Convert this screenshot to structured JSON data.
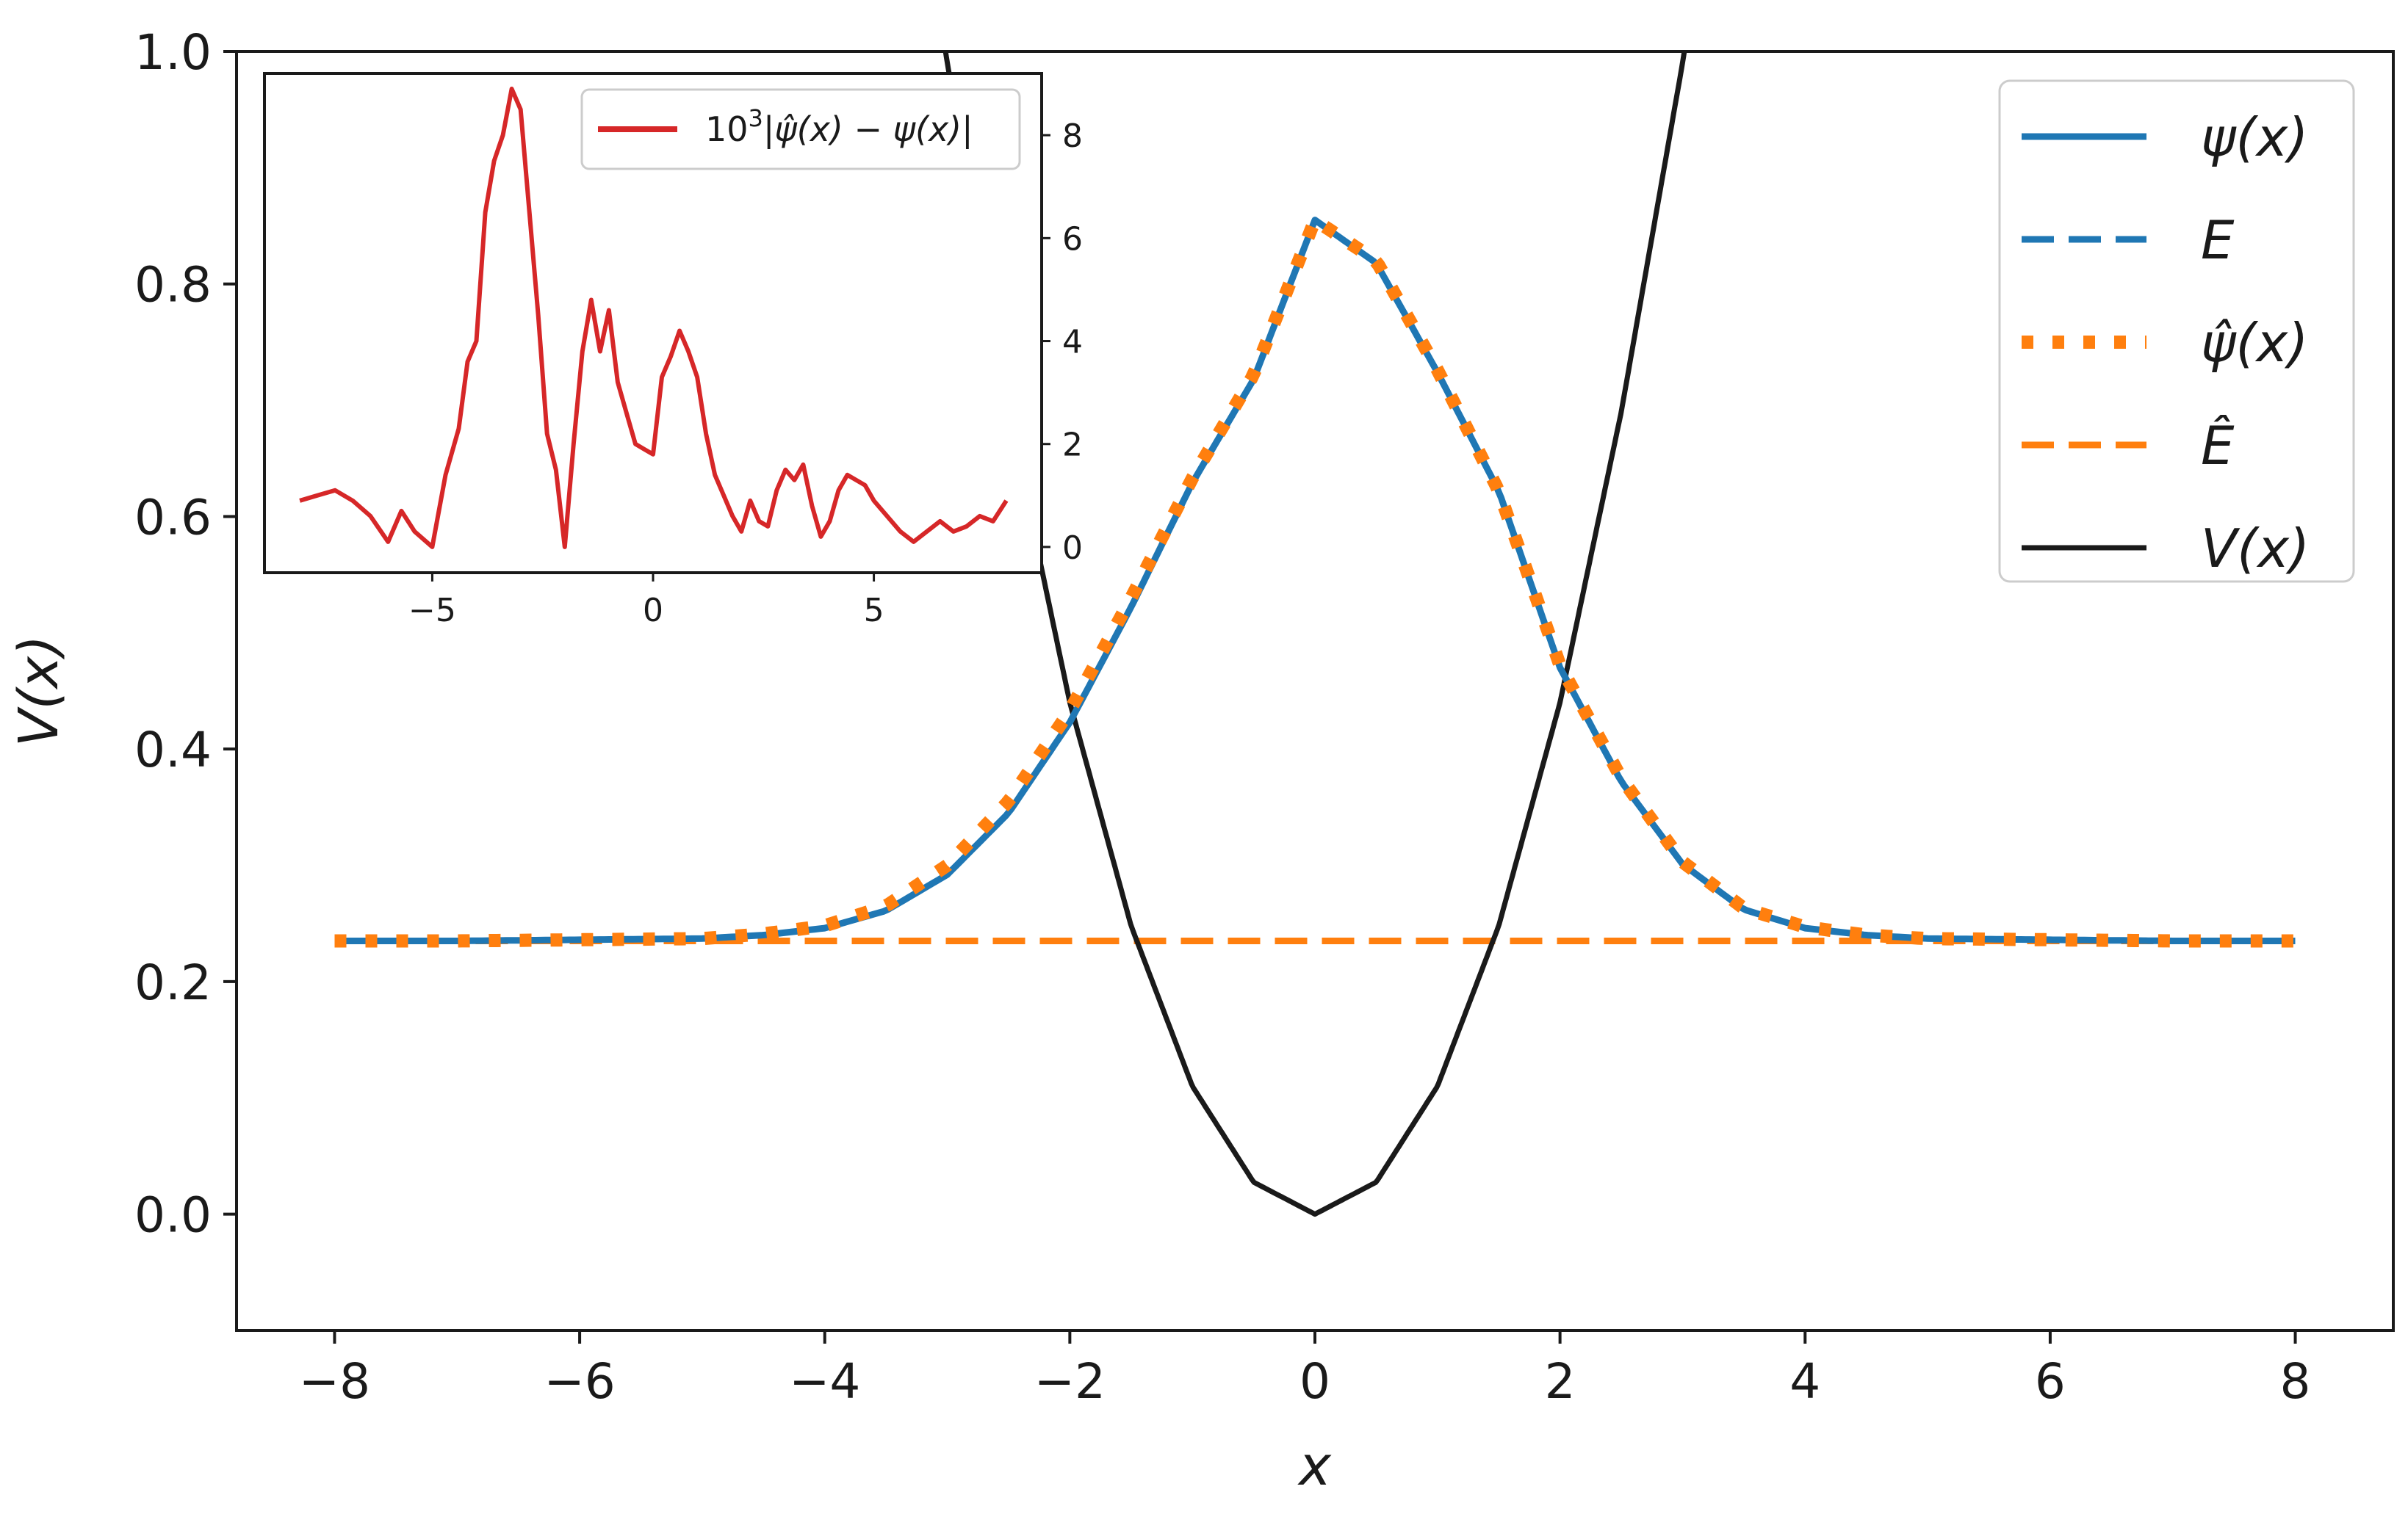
{
  "chart_data": [
    {
      "id": "main",
      "type": "line",
      "xlabel": "x",
      "ylabel": "V(x)",
      "xlim": [
        -8.8,
        8.8
      ],
      "ylim": [
        -0.1,
        1.0
      ],
      "xticks": [
        -8,
        -6,
        -4,
        -2,
        0,
        2,
        4,
        6,
        8
      ],
      "xtick_labels": [
        "−8",
        "−6",
        "−4",
        "−2",
        "0",
        "2",
        "4",
        "6",
        "8"
      ],
      "yticks": [
        0.0,
        0.2,
        0.4,
        0.6,
        0.8,
        1.0
      ],
      "ytick_labels": [
        "0.0",
        "0.2",
        "0.4",
        "0.6",
        "0.8",
        "1.0"
      ],
      "grid": false,
      "legend_position": "top-right",
      "x": [
        -8.0,
        -7.0,
        -6.0,
        -5.0,
        -4.5,
        -4.0,
        -3.5,
        -3.0,
        -2.5,
        -2.0,
        -1.5,
        -1.0,
        -0.5,
        0.0,
        0.5,
        1.0,
        1.5,
        2.0,
        2.5,
        3.0,
        3.5,
        4.0,
        4.5,
        5.0,
        6.0,
        7.0,
        8.0
      ],
      "series": [
        {
          "name": "ψ(x)",
          "style": "solid",
          "color": "#1f77b4",
          "values": [
            0.235,
            0.235,
            0.236,
            0.237,
            0.24,
            0.246,
            0.261,
            0.292,
            0.345,
            0.423,
            0.522,
            0.629,
            0.718,
            0.855,
            0.818,
            0.724,
            0.622,
            0.47,
            0.372,
            0.301,
            0.262,
            0.246,
            0.24,
            0.237,
            0.236,
            0.235,
            0.235
          ]
        },
        {
          "name": "E",
          "style": "dashed",
          "color": "#1f77b4",
          "y": 0.235
        },
        {
          "name": "ψ̂(x)",
          "style": "dotted",
          "color": "#ff7f0e",
          "values": [
            0.235,
            0.235,
            0.236,
            0.237,
            0.241,
            0.248,
            0.265,
            0.3,
            0.355,
            0.433,
            0.53,
            0.633,
            0.722,
            0.855,
            0.82,
            0.726,
            0.622,
            0.472,
            0.375,
            0.303,
            0.263,
            0.247,
            0.24,
            0.237,
            0.236,
            0.235,
            0.235
          ]
        },
        {
          "name": "Ê",
          "style": "dashed",
          "color": "#ff7f0e",
          "y": 0.235
        },
        {
          "name": "V(x)",
          "style": "solid",
          "color": "#1a1a1a",
          "x": [
            -3.2,
            -3.0,
            -2.5,
            -2.0,
            -1.5,
            -1.0,
            -0.5,
            0.0,
            0.5,
            1.0,
            1.5,
            2.0,
            2.5,
            3.0,
            3.2
          ],
          "values": [
            1.13,
            0.99,
            0.69,
            0.44,
            0.248,
            0.11,
            0.0275,
            0.0,
            0.0275,
            0.11,
            0.248,
            0.44,
            0.69,
            0.99,
            1.13
          ]
        }
      ]
    },
    {
      "id": "inset",
      "type": "line",
      "xlim": [
        -8.8,
        8.8
      ],
      "ylim": [
        -0.5,
        9.2
      ],
      "xticks": [
        -5,
        0,
        5
      ],
      "xtick_labels": [
        "−5",
        "0",
        "5"
      ],
      "yticks": [
        0,
        2,
        4,
        6,
        8
      ],
      "ytick_labels": [
        "0",
        "2",
        "4",
        "6",
        "8"
      ],
      "ytick_side": "right",
      "legend_position": "top-right",
      "series": [
        {
          "name": "10³|ψ̂(x) − ψ(x)|",
          "name_parts": {
            "base": "10",
            "exp": "3",
            "rest": "|ψ̂(x) − ψ(x)|"
          },
          "color": "#d62728",
          "x": [
            -8.0,
            -7.6,
            -7.2,
            -6.8,
            -6.4,
            -6.0,
            -5.7,
            -5.4,
            -5.0,
            -4.7,
            -4.4,
            -4.2,
            -4.0,
            -3.8,
            -3.6,
            -3.4,
            -3.2,
            -3.0,
            -2.8,
            -2.6,
            -2.4,
            -2.2,
            -2.0,
            -1.8,
            -1.6,
            -1.4,
            -1.2,
            -1.0,
            -0.8,
            -0.6,
            -0.4,
            -0.2,
            0.0,
            0.2,
            0.4,
            0.6,
            0.8,
            1.0,
            1.2,
            1.4,
            1.6,
            1.8,
            2.0,
            2.2,
            2.4,
            2.6,
            2.8,
            3.0,
            3.2,
            3.4,
            3.6,
            3.8,
            4.0,
            4.2,
            4.4,
            4.6,
            4.8,
            5.0,
            5.3,
            5.6,
            5.9,
            6.2,
            6.5,
            6.8,
            7.1,
            7.4,
            7.7,
            8.0
          ],
          "values": [
            0.9,
            1.0,
            1.1,
            0.9,
            0.6,
            0.1,
            0.7,
            0.3,
            0.0,
            1.4,
            2.3,
            3.6,
            4.0,
            6.5,
            7.5,
            8.0,
            8.9,
            8.5,
            6.5,
            4.5,
            2.2,
            1.5,
            0.0,
            2.0,
            3.8,
            4.8,
            3.8,
            4.6,
            3.2,
            2.6,
            2.0,
            1.9,
            1.8,
            3.3,
            3.7,
            4.2,
            3.8,
            3.3,
            2.2,
            1.4,
            1.0,
            0.6,
            0.3,
            0.9,
            0.5,
            0.4,
            1.1,
            1.5,
            1.3,
            1.6,
            0.8,
            0.2,
            0.5,
            1.1,
            1.4,
            1.3,
            1.2,
            0.9,
            0.6,
            0.3,
            0.1,
            0.3,
            0.5,
            0.3,
            0.4,
            0.6,
            0.5,
            0.9
          ]
        }
      ]
    }
  ]
}
